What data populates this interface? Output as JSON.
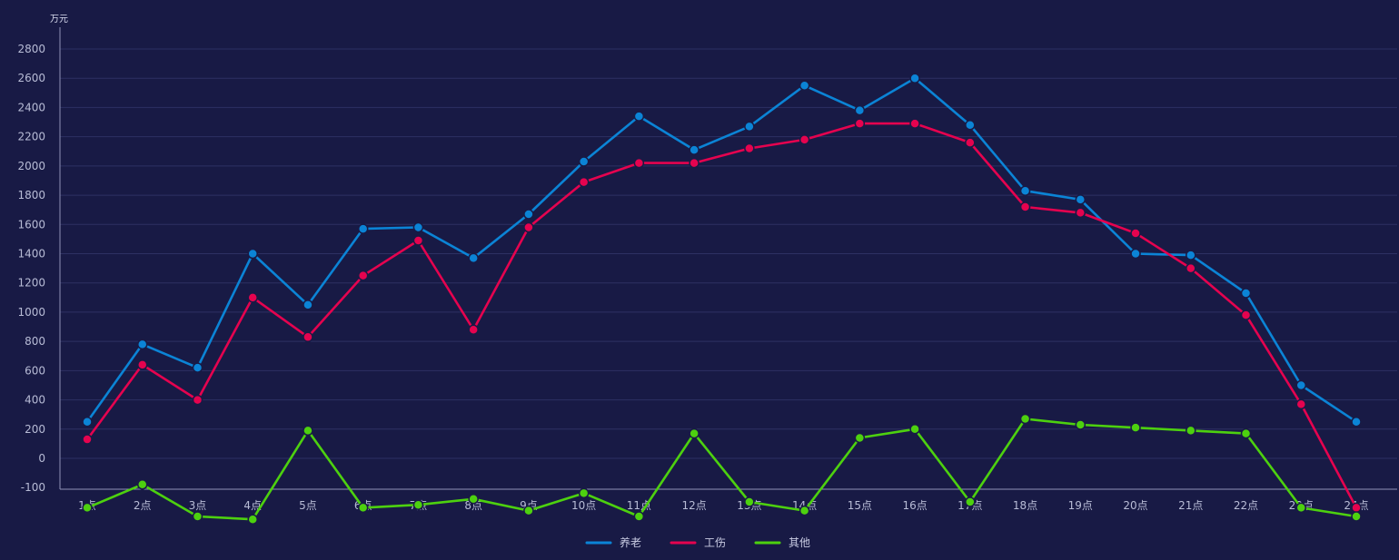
{
  "chart_data": {
    "type": "line",
    "title": "",
    "xlabel": "",
    "ylabel": "万元",
    "ylim": [
      -100,
      2900
    ],
    "yticks": [
      -100,
      0,
      200,
      400,
      600,
      800,
      1000,
      1200,
      1400,
      1600,
      1800,
      2000,
      2200,
      2400,
      2600,
      2800
    ],
    "grid": true,
    "legend_position": "bottom-center",
    "categories": [
      "1点",
      "2点",
      "3点",
      "4点",
      "5点",
      "6点",
      "7点",
      "8点",
      "9点",
      "10点",
      "11点",
      "12点",
      "13点",
      "14点",
      "15点",
      "16点",
      "17点",
      "18点",
      "19点",
      "20点",
      "21点",
      "22点",
      "23点",
      "24点"
    ],
    "series": [
      {
        "name": "养老",
        "color": "#0b84d6",
        "values": [
          250,
          780,
          620,
          1400,
          1050,
          1570,
          1580,
          1370,
          1670,
          2030,
          2340,
          2110,
          2270,
          2550,
          2380,
          2600,
          2280,
          1830,
          1770,
          1400,
          1390,
          1130,
          500,
          250
        ]
      },
      {
        "name": "工伤",
        "color": "#e5034f",
        "values": [
          130,
          640,
          400,
          1100,
          830,
          1250,
          1490,
          880,
          1580,
          1890,
          2020,
          2020,
          2120,
          2180,
          2290,
          2290,
          2160,
          1720,
          1680,
          1540,
          1300,
          980,
          370,
          -170
        ]
      },
      {
        "name": "其他",
        "color": "#4dd10f",
        "values": [
          -170,
          -90,
          -200,
          -210,
          190,
          -170,
          -160,
          -140,
          -180,
          -120,
          -200,
          170,
          -150,
          -180,
          140,
          200,
          -150,
          270,
          230,
          210,
          190,
          170,
          -170,
          -200
        ]
      }
    ]
  },
  "legend": {
    "items": [
      {
        "label": "养老",
        "color": "#0b84d6"
      },
      {
        "label": "工伤",
        "color": "#e5034f"
      },
      {
        "label": "其他",
        "color": "#4dd10f"
      }
    ]
  },
  "colors": {
    "background": "#181a45",
    "grid": "#2d3063",
    "axis": "#8f93b8",
    "text": "#b8bcd6"
  }
}
